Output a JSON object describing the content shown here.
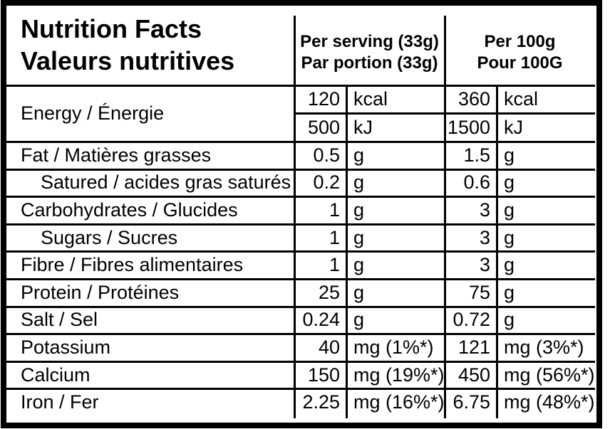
{
  "title": {
    "line1": "Nutrition Facts",
    "line2": "Valeurs nutritives"
  },
  "columns": {
    "per_serving": {
      "line1": "Per serving (33g)",
      "line2": "Par portion (33g)"
    },
    "per_100g": {
      "line1": "Per 100g",
      "line2": "Pour 100G"
    }
  },
  "energy": {
    "label": "Energy / Énergie",
    "rows": [
      {
        "serving_value": "120",
        "serving_unit": "kcal",
        "per100_value": "360",
        "per100_unit": "kcal"
      },
      {
        "serving_value": "500",
        "serving_unit": "kJ",
        "per100_value": "1500",
        "per100_unit": "kJ"
      }
    ]
  },
  "rows": [
    {
      "label": "Fat / Matières grasses",
      "indent": false,
      "serving_value": "0.5",
      "serving_unit": "g",
      "per100_value": "1.5",
      "per100_unit": "g"
    },
    {
      "label": "Satured / acides gras saturés",
      "indent": true,
      "serving_value": "0.2",
      "serving_unit": "g",
      "per100_value": "0.6",
      "per100_unit": "g"
    },
    {
      "label": "Carbohydrates / Glucides",
      "indent": false,
      "serving_value": "1",
      "serving_unit": "g",
      "per100_value": "3",
      "per100_unit": "g"
    },
    {
      "label": "Sugars / Sucres",
      "indent": true,
      "serving_value": "1",
      "serving_unit": "g",
      "per100_value": "3",
      "per100_unit": "g"
    },
    {
      "label": "Fibre / Fibres alimentaires",
      "indent": false,
      "serving_value": "1",
      "serving_unit": "g",
      "per100_value": "3",
      "per100_unit": "g"
    },
    {
      "label": "Protein / Protéines",
      "indent": false,
      "serving_value": "25",
      "serving_unit": "g",
      "per100_value": "75",
      "per100_unit": "g"
    },
    {
      "label": "Salt / Sel",
      "indent": false,
      "serving_value": "0.24",
      "serving_unit": "g",
      "per100_value": "0.72",
      "per100_unit": "g"
    },
    {
      "label": "Potassium",
      "indent": false,
      "serving_value": "40",
      "serving_unit": "mg (1%*)",
      "per100_value": "121",
      "per100_unit": "mg (3%*)"
    },
    {
      "label": "Calcium",
      "indent": false,
      "serving_value": "150",
      "serving_unit": "mg (19%*)",
      "per100_value": "450",
      "per100_unit": "mg (56%*)"
    },
    {
      "label": "Iron / Fer",
      "indent": false,
      "serving_value": "2.25",
      "serving_unit": "mg (16%*)",
      "per100_value": "6.75",
      "per100_unit": "mg (48%*)"
    }
  ],
  "colors": {
    "border": "#000000",
    "background": "#ffffff",
    "text": "#000000"
  }
}
